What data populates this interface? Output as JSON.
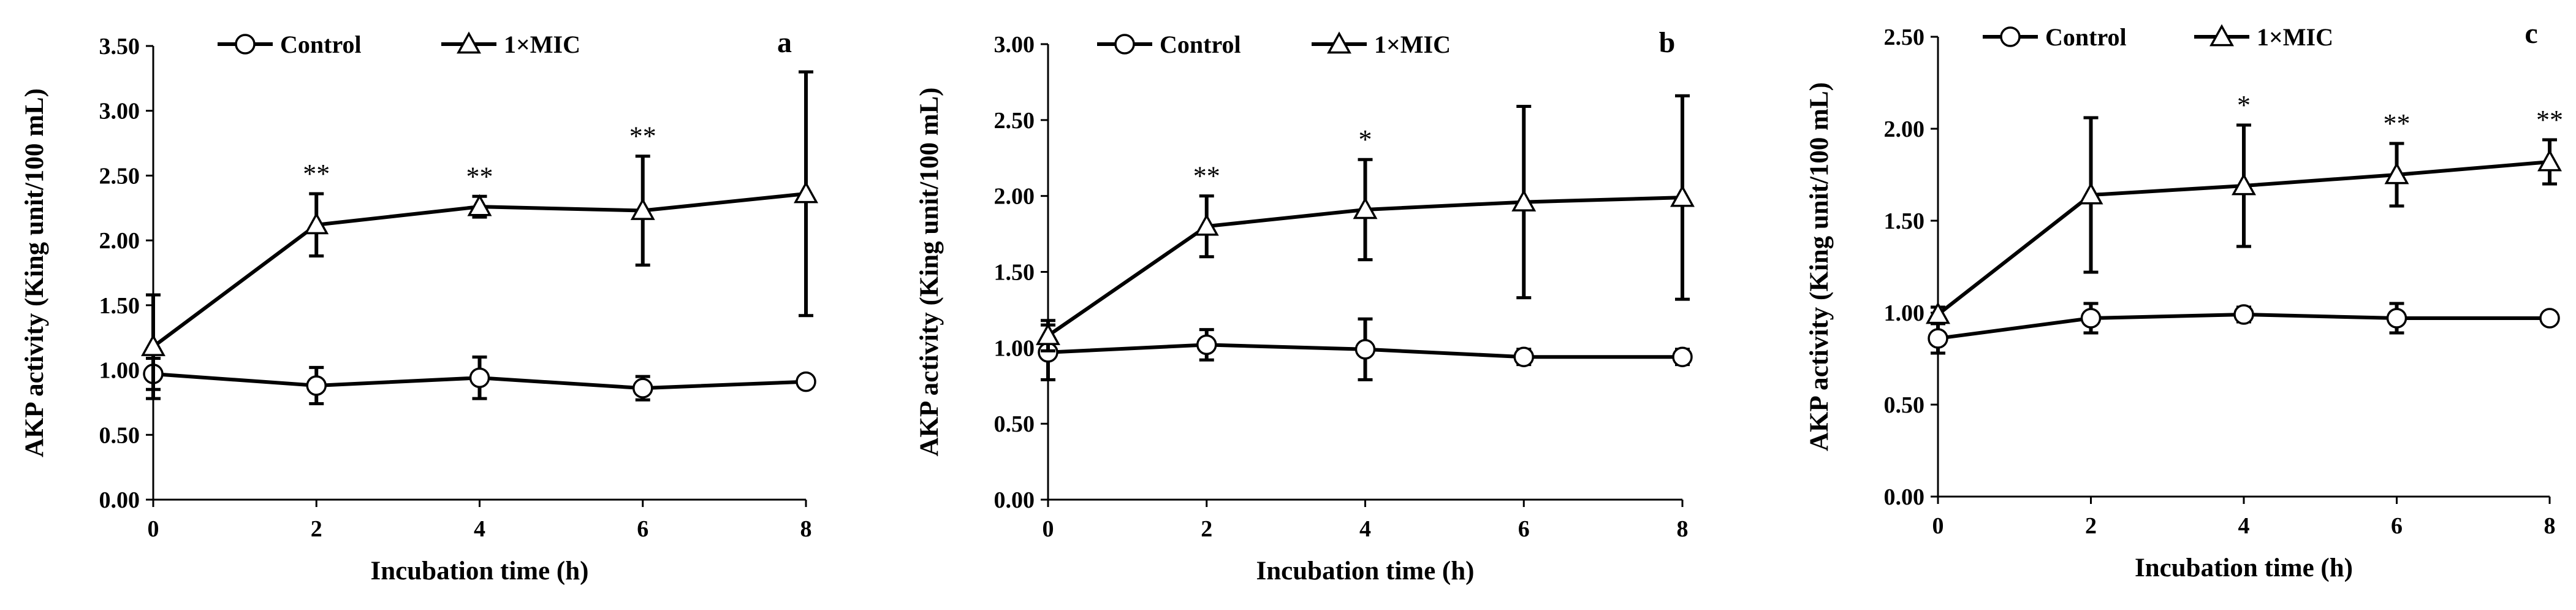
{
  "chart_data": [
    {
      "type": "line",
      "panel_label": "a",
      "xlabel": "Incubation time (h)",
      "ylabel": "AKP activity (King unit/100 mL)",
      "x": [
        0,
        2,
        4,
        6,
        8
      ],
      "x_ticks": [
        "0",
        "2",
        "4",
        "6",
        "8"
      ],
      "ylim": [
        0,
        3.5
      ],
      "y_ticks": [
        "0.00",
        "0.50",
        "1.00",
        "1.50",
        "2.00",
        "2.50",
        "3.00",
        "3.50"
      ],
      "series": [
        {
          "name": "Control",
          "marker": "circle",
          "values": [
            0.97,
            0.88,
            0.94,
            0.86,
            0.91
          ],
          "errors": [
            0.12,
            0.14,
            0.16,
            0.09,
            0.02
          ]
        },
        {
          "name": "1×MIC",
          "marker": "triangle",
          "values": [
            1.18,
            2.12,
            2.26,
            2.23,
            2.36
          ],
          "errors": [
            0.4,
            0.24,
            0.08,
            0.42,
            0.94
          ]
        }
      ],
      "annotations": [
        {
          "x": 2,
          "text": "**"
        },
        {
          "x": 4,
          "text": "**"
        },
        {
          "x": 6,
          "text": "**"
        }
      ]
    },
    {
      "type": "line",
      "panel_label": "b",
      "xlabel": "Incubation time (h)",
      "ylabel": "AKP activity (King unit/100 mL)",
      "x": [
        0,
        2,
        4,
        6,
        8
      ],
      "x_ticks": [
        "0",
        "2",
        "4",
        "6",
        "8"
      ],
      "ylim": [
        0,
        3.0
      ],
      "y_ticks": [
        "0.00",
        "0.50",
        "1.00",
        "1.50",
        "2.00",
        "2.50",
        "3.00"
      ],
      "series": [
        {
          "name": "Control",
          "marker": "circle",
          "values": [
            0.97,
            1.02,
            0.99,
            0.94,
            0.94
          ],
          "errors": [
            0.18,
            0.1,
            0.2,
            0.05,
            0.05
          ]
        },
        {
          "name": "1×MIC",
          "marker": "triangle",
          "values": [
            1.08,
            1.8,
            1.91,
            1.96,
            1.99
          ],
          "errors": [
            0.1,
            0.2,
            0.33,
            0.63,
            0.67
          ]
        }
      ],
      "annotations": [
        {
          "x": 2,
          "text": "**"
        },
        {
          "x": 4,
          "text": "*"
        }
      ]
    },
    {
      "type": "line",
      "panel_label": "c",
      "xlabel": "Incubation time (h)",
      "ylabel": "AKP activity (King unit/100 mL)",
      "x": [
        0,
        2,
        4,
        6,
        8
      ],
      "x_ticks": [
        "0",
        "2",
        "4",
        "6",
        "8"
      ],
      "ylim": [
        0,
        2.5
      ],
      "y_ticks": [
        "0.00",
        "0.50",
        "1.00",
        "1.50",
        "2.00",
        "2.50"
      ],
      "series": [
        {
          "name": "Control",
          "marker": "circle",
          "values": [
            0.86,
            0.97,
            0.99,
            0.97,
            0.97
          ],
          "errors": [
            0.08,
            0.08,
            0.04,
            0.08,
            0.02
          ]
        },
        {
          "name": "1×MIC",
          "marker": "triangle",
          "values": [
            0.99,
            1.64,
            1.69,
            1.75,
            1.82
          ],
          "errors": [
            0.04,
            0.42,
            0.33,
            0.17,
            0.12
          ]
        }
      ],
      "annotations": [
        {
          "x": 4,
          "text": "*"
        },
        {
          "x": 6,
          "text": "**"
        },
        {
          "x": 8,
          "text": "**"
        }
      ]
    }
  ]
}
